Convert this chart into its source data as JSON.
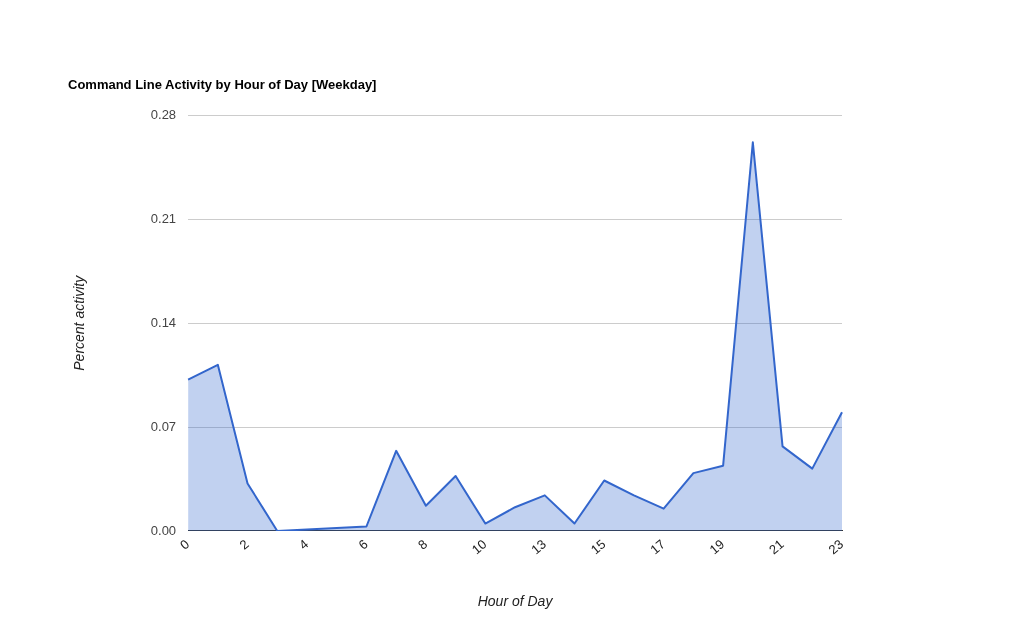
{
  "chart_data": {
    "type": "area",
    "title": "Command Line Activity by Hour of Day [Weekday]",
    "xlabel": "Hour of Day",
    "ylabel": "Percent activity",
    "categories": [
      "0",
      null,
      "2",
      null,
      "4",
      null,
      "6",
      null,
      "8",
      null,
      "10",
      null,
      "13",
      null,
      "15",
      null,
      "17",
      null,
      "19",
      null,
      "21",
      null,
      "23"
    ],
    "series": [
      {
        "color": "#3366cc",
        "values": [
          0.102,
          0.112,
          0.032,
          0.0,
          0.001,
          0.002,
          0.003,
          0.054,
          0.017,
          0.037,
          0.005,
          0.016,
          0.024,
          0.005,
          0.034,
          0.024,
          0.015,
          0.039,
          0.044,
          0.262,
          0.057,
          0.042,
          0.08
        ]
      }
    ],
    "ylim": [
      0,
      0.28
    ],
    "yticks": [
      {
        "value": 0,
        "label": "0.00"
      },
      {
        "value": 0.07,
        "label": "0.07"
      },
      {
        "value": 0.14,
        "label": "0.14"
      },
      {
        "value": 0.21,
        "label": "0.21"
      },
      {
        "value": 0.28,
        "label": "0.28"
      }
    ],
    "grid": "y",
    "legend": false,
    "marker": "none",
    "line_style": "solid"
  }
}
